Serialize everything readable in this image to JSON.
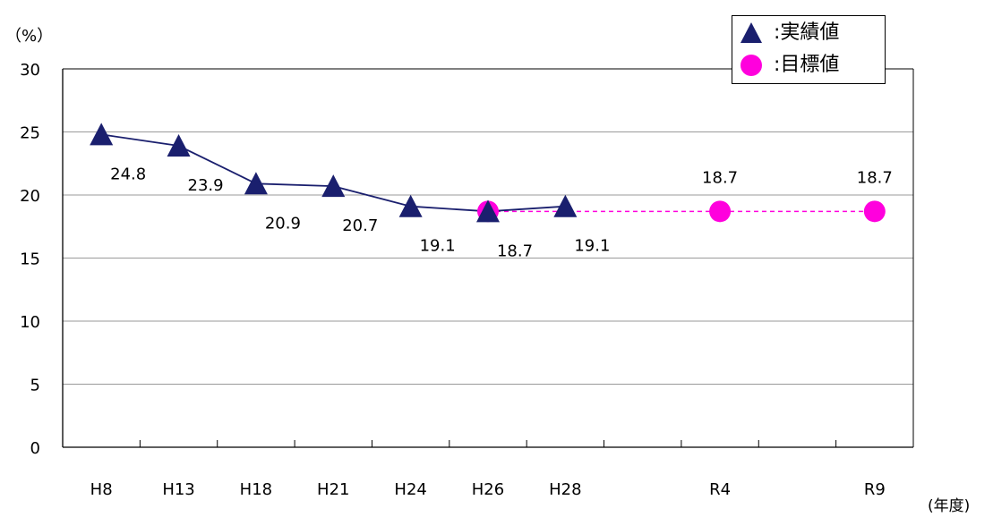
{
  "chart_data": {
    "type": "line",
    "ylabel": "（%）",
    "xlabel": "(年度)",
    "categories": [
      "H8",
      "H13",
      "H18",
      "H21",
      "H24",
      "H26",
      "H28",
      "",
      "R4",
      "",
      "R9"
    ],
    "ylim": [
      0,
      30
    ],
    "yticks": [
      0,
      5,
      10,
      15,
      20,
      25,
      30
    ],
    "grid": true,
    "legend_position": "top-right",
    "series": [
      {
        "name": "実績値",
        "marker": "triangle",
        "color": "#1a1f6e",
        "points": [
          {
            "x": "H8",
            "y": 24.8,
            "label": "24.8"
          },
          {
            "x": "H13",
            "y": 23.9,
            "label": "23.9"
          },
          {
            "x": "H18",
            "y": 20.9,
            "label": "20.9"
          },
          {
            "x": "H21",
            "y": 20.7,
            "label": "20.7"
          },
          {
            "x": "H24",
            "y": 19.1,
            "label": "19.1"
          },
          {
            "x": "H26",
            "y": 18.7,
            "label": "18.7"
          },
          {
            "x": "H28",
            "y": 19.1,
            "label": "19.1"
          }
        ]
      },
      {
        "name": "目標値",
        "marker": "circle",
        "color": "#ff00dd",
        "line_style": "dashed",
        "points": [
          {
            "x": "H26",
            "y": 18.7,
            "label": ""
          },
          {
            "x": "R4",
            "y": 18.7,
            "label": "18.7"
          },
          {
            "x": "R9",
            "y": 18.7,
            "label": "18.7"
          }
        ]
      }
    ]
  },
  "legend": {
    "items": [
      {
        "label": ":実績値",
        "marker": "triangle",
        "color": "#1a1f6e"
      },
      {
        "label": ":目標値",
        "marker": "circle",
        "color": "#ff00dd"
      }
    ]
  }
}
